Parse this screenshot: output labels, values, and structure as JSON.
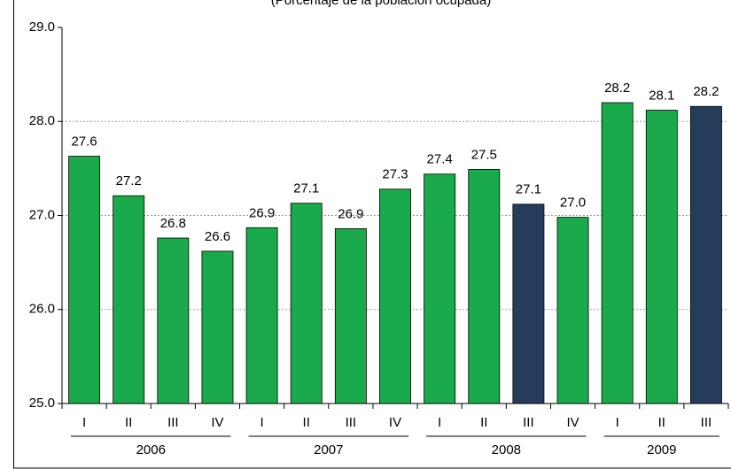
{
  "chart_data": {
    "type": "bar",
    "subtitle": "(Porcentaje de la población ocupada)",
    "categories": [
      "I",
      "II",
      "III",
      "IV",
      "I",
      "II",
      "III",
      "IV",
      "I",
      "II",
      "III",
      "IV",
      "I",
      "II",
      "III"
    ],
    "groups": [
      {
        "label": "2006",
        "span": 4
      },
      {
        "label": "2007",
        "span": 4
      },
      {
        "label": "2008",
        "span": 4
      },
      {
        "label": "2009",
        "span": 3
      }
    ],
    "values": [
      27.63,
      27.21,
      26.76,
      26.62,
      26.87,
      27.13,
      26.86,
      27.28,
      27.44,
      27.49,
      27.12,
      26.98,
      28.2,
      28.12,
      28.16
    ],
    "value_labels": [
      "27.6",
      "27.2",
      "26.8",
      "26.6",
      "26.9",
      "27.1",
      "26.9",
      "27.3",
      "27.4",
      "27.5",
      "27.1",
      "27.0",
      "28.2",
      "28.1",
      "28.2"
    ],
    "colors": [
      "#1aaa4b",
      "#1aaa4b",
      "#1aaa4b",
      "#1aaa4b",
      "#1aaa4b",
      "#1aaa4b",
      "#1aaa4b",
      "#1aaa4b",
      "#1aaa4b",
      "#1aaa4b",
      "#253c5a",
      "#1aaa4b",
      "#1aaa4b",
      "#1aaa4b",
      "#253c5a"
    ],
    "ylim": [
      25,
      29
    ],
    "yticks": [
      {
        "value": 25,
        "label": "25.0"
      },
      {
        "value": 26,
        "label": "26.0"
      },
      {
        "value": 27,
        "label": "27.0"
      },
      {
        "value": 28,
        "label": "28.0"
      },
      {
        "value": 29,
        "label": "29.0"
      }
    ],
    "grid": true
  }
}
